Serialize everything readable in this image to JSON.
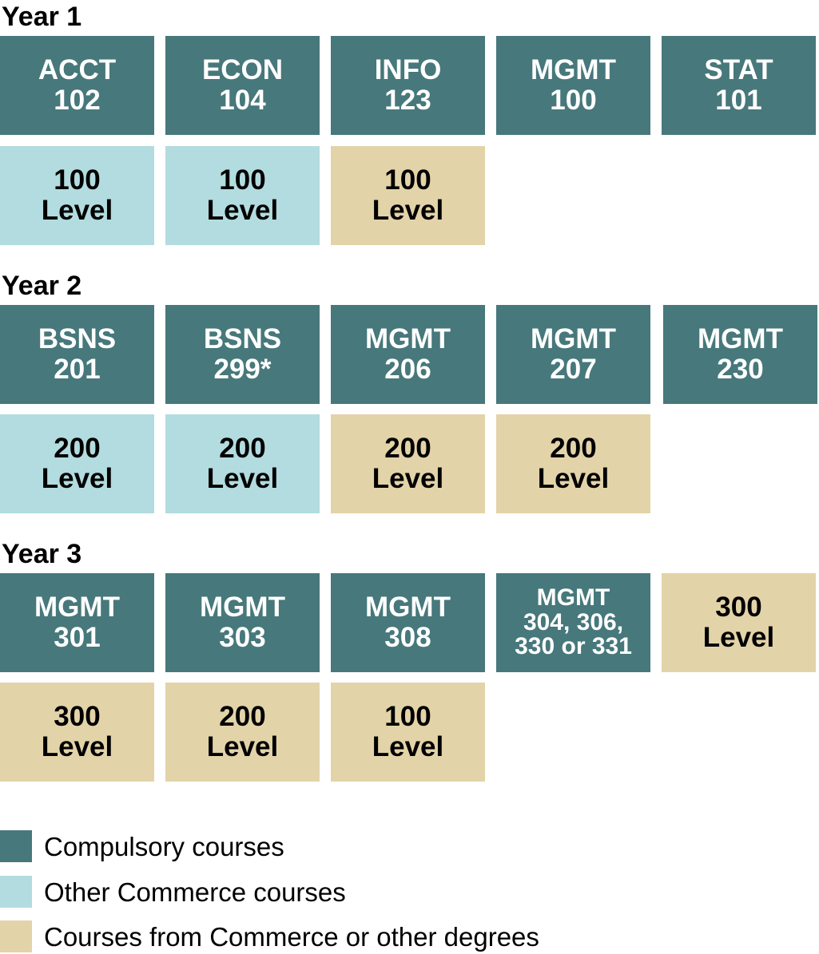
{
  "years": [
    {
      "label": "Year 1",
      "row1": [
        {
          "text": "ACCT\n102",
          "type": "compulsory"
        },
        {
          "text": "ECON\n104",
          "type": "compulsory"
        },
        {
          "text": "INFO\n123",
          "type": "compulsory"
        },
        {
          "text": "MGMT\n100",
          "type": "compulsory"
        },
        {
          "text": "STAT\n101",
          "type": "compulsory"
        }
      ],
      "row2": [
        {
          "text": "100\nLevel",
          "type": "commerce"
        },
        {
          "text": "100\nLevel",
          "type": "commerce"
        },
        {
          "text": "100\nLevel",
          "type": "other"
        }
      ]
    },
    {
      "label": "Year 2",
      "row1": [
        {
          "text": "BSNS\n201",
          "type": "compulsory"
        },
        {
          "text": "BSNS\n 299*",
          "type": "compulsory"
        },
        {
          "text": "MGMT\n206",
          "type": "compulsory"
        },
        {
          "text": "MGMT\n207",
          "type": "compulsory"
        },
        {
          "text": "MGMT\n230",
          "type": "compulsory"
        }
      ],
      "row2": [
        {
          "text": "200\nLevel",
          "type": "commerce"
        },
        {
          "text": "200\nLevel",
          "type": "commerce"
        },
        {
          "text": "200\nLevel",
          "type": "other"
        },
        {
          "text": "200\nLevel",
          "type": "other"
        }
      ]
    },
    {
      "label": "Year 3",
      "row1": [
        {
          "text": "MGMT\n301",
          "type": "compulsory"
        },
        {
          "text": "MGMT\n303",
          "type": "compulsory"
        },
        {
          "text": "MGMT\n308",
          "type": "compulsory"
        },
        {
          "text": "MGMT\n304, 306,\n330 or 331",
          "type": "compulsory",
          "small": true
        },
        {
          "text": "300\nLevel",
          "type": "other"
        }
      ],
      "row2": [
        {
          "text": "300\nLevel",
          "type": "other"
        },
        {
          "text": "200\nLevel",
          "type": "other"
        },
        {
          "text": "100\nLevel",
          "type": "other"
        }
      ]
    }
  ],
  "legend": [
    {
      "label": "Compulsory courses",
      "type": "compulsory"
    },
    {
      "label": "Other Commerce courses",
      "type": "commerce"
    },
    {
      "label": "Courses from Commerce or other degrees",
      "type": "other"
    }
  ],
  "colors": {
    "compulsory": "#47787b",
    "commerce": "#b2dcdf",
    "other": "#e3d3a8"
  }
}
